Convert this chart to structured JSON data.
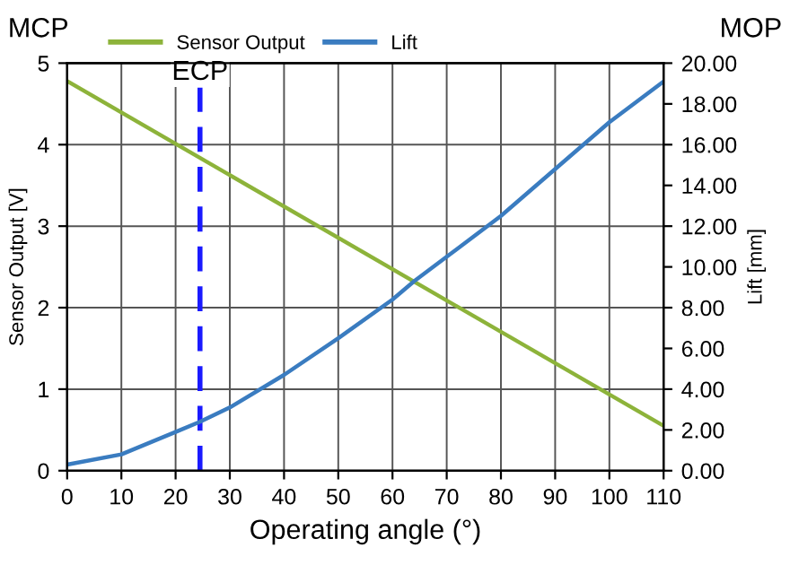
{
  "chart_data": {
    "type": "line",
    "xlabel": "Operating angle (°)",
    "ylabel": "Sensor Output [V]",
    "y2label": "Lift [mm]",
    "x": [
      0,
      10,
      20,
      24.5,
      30,
      40,
      50,
      60,
      64,
      70,
      80,
      90,
      100,
      110
    ],
    "series": [
      {
        "name": "Sensor Output",
        "color": "#8db33a",
        "x": [
          0,
          110
        ],
        "values": [
          4.78,
          0.55
        ]
      },
      {
        "name": "Lift",
        "color": "#3a7cc0",
        "axis": "y2",
        "values": [
          0.3,
          0.8,
          1.9,
          2.4,
          3.1,
          4.7,
          6.5,
          8.4,
          9.3,
          10.5,
          12.5,
          14.8,
          17.1,
          19.1
        ]
      }
    ],
    "xlim": [
      0,
      110
    ],
    "xticks": [
      0,
      10,
      20,
      30,
      40,
      50,
      60,
      70,
      80,
      90,
      100,
      110
    ],
    "ylim": [
      0,
      5
    ],
    "yticks": [
      0,
      1,
      2,
      3,
      4,
      5
    ],
    "y2lim": [
      0,
      20
    ],
    "y2ticks": [
      {
        "value": 0,
        "label": "0.00"
      },
      {
        "value": 2,
        "label": "2.00"
      },
      {
        "value": 4,
        "label": "4.00"
      },
      {
        "value": 6,
        "label": "6.00"
      },
      {
        "value": 8,
        "label": "8.00"
      },
      {
        "value": 10,
        "label": "10.00"
      },
      {
        "value": 12,
        "label": "12.00"
      },
      {
        "value": 14,
        "label": "14.00"
      },
      {
        "value": 16,
        "label": "16.00"
      },
      {
        "value": 18,
        "label": "18.00"
      },
      {
        "value": 20,
        "label": "20.00"
      }
    ],
    "ref_lines": [
      {
        "axis": "x",
        "value": 24.5,
        "label": "ECP",
        "color": "#1a1aff",
        "line_style": "dashed"
      }
    ],
    "annotations": [
      "MCP",
      "MOP"
    ],
    "grid": true,
    "legend": "top",
    "marker": "none",
    "line_style": "solid"
  }
}
